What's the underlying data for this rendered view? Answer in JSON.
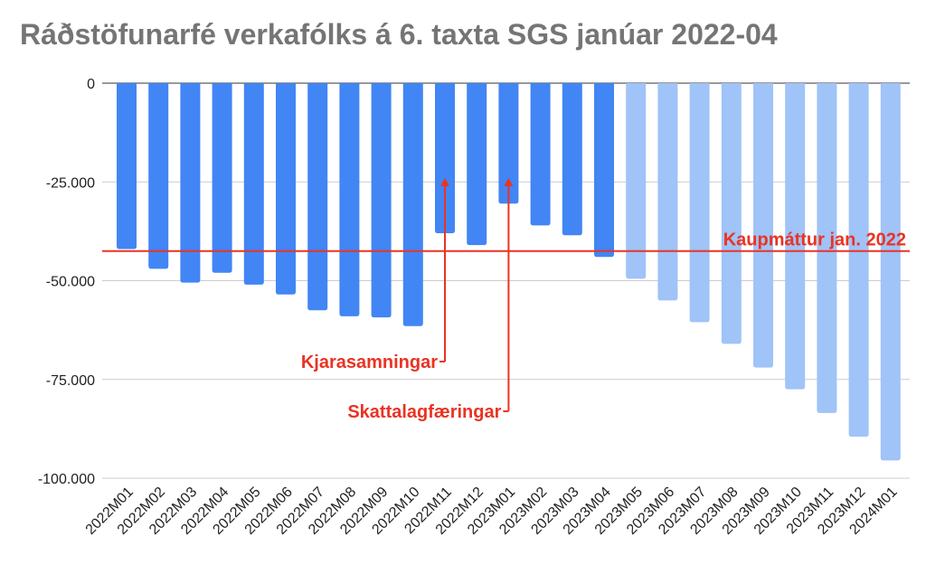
{
  "chart_data": {
    "type": "bar",
    "title": "Ráðstöfunarfé verkafólks á 6. taxta SGS janúar 2022-04",
    "xlabel": "",
    "ylabel": "",
    "ylim": [
      -100000,
      0
    ],
    "y_ticks": [
      "0",
      "-25.000",
      "-50.000",
      "-75.000",
      "-100.000"
    ],
    "y_tick_values": [
      0,
      -25000,
      -50000,
      -75000,
      -100000
    ],
    "grid": true,
    "legend": "none",
    "categories": [
      "2022M01",
      "2022M02",
      "2022M03",
      "2022M04",
      "2022M05",
      "2022M06",
      "2022M07",
      "2022M08",
      "2022M09",
      "2022M10",
      "2022M11",
      "2022M12",
      "2023M01",
      "2023M02",
      "2023M03",
      "2023M04",
      "2023M05",
      "2023M06",
      "2023M07",
      "2023M08",
      "2023M09",
      "2023M10",
      "2023M11",
      "2023M12",
      "2024M01"
    ],
    "values": [
      -42000,
      -47000,
      -50500,
      -48000,
      -51000,
      -53500,
      -57500,
      -59000,
      -59300,
      -61500,
      -38000,
      -41000,
      -30500,
      -36000,
      -38500,
      -44000,
      -49500,
      -55000,
      -60500,
      -66000,
      -72000,
      -77500,
      -83500,
      -89500,
      -95500
    ],
    "actual_count": 16,
    "colors": {
      "actual": "#4285f4",
      "forecast": "#a0c3f8",
      "annotation": "#ea3323",
      "grid": "#cccccc",
      "baseline": "#333333"
    },
    "reference_line": {
      "value": -42500,
      "label": "Kaupmáttur jan. 2022"
    },
    "annotations": [
      {
        "label": "Kjarasamningar",
        "category": "2022M11"
      },
      {
        "label": "Skattalagfæringar",
        "category": "2023M01"
      }
    ]
  }
}
